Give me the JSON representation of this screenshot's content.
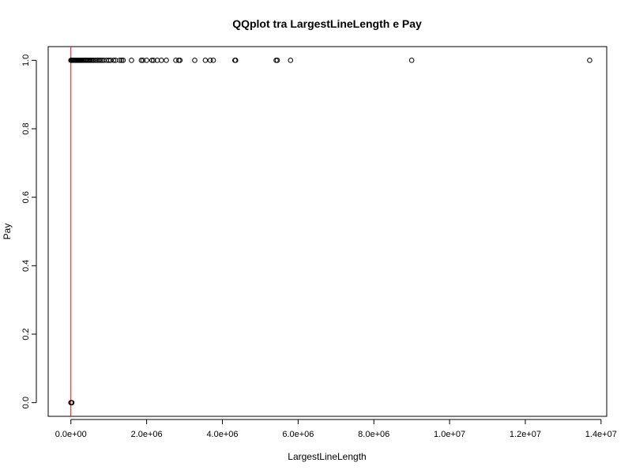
{
  "chart_data": {
    "type": "scatter",
    "title": "QQplot tra LargestLineLength e Pay",
    "xlabel": "LargestLineLength",
    "ylabel": "Pay",
    "xlim": [
      -600000,
      14150000
    ],
    "ylim": [
      -0.04,
      1.04
    ],
    "x_ticks": [
      {
        "value": 0,
        "label": "0.0e+00"
      },
      {
        "value": 2000000,
        "label": "2.0e+06"
      },
      {
        "value": 4000000,
        "label": "4.0e+06"
      },
      {
        "value": 6000000,
        "label": "6.0e+06"
      },
      {
        "value": 8000000,
        "label": "8.0e+06"
      },
      {
        "value": 10000000,
        "label": "1.0e+07"
      },
      {
        "value": 12000000,
        "label": "1.2e+07"
      },
      {
        "value": 14000000,
        "label": "1.4e+07"
      }
    ],
    "y_ticks": [
      {
        "value": 0.0,
        "label": "0.0"
      },
      {
        "value": 0.2,
        "label": "0.2"
      },
      {
        "value": 0.4,
        "label": "0.4"
      },
      {
        "value": 0.6,
        "label": "0.6"
      },
      {
        "value": 0.8,
        "label": "0.8"
      },
      {
        "value": 1.0,
        "label": "1.0"
      }
    ],
    "grid": false,
    "legend": "none",
    "reference_line": {
      "orientation": "vertical",
      "x": 0,
      "color": "#ff0000"
    },
    "point_color": "#000000",
    "series": [
      {
        "points": [
          {
            "x": 0,
            "y": 0
          },
          {
            "x": 5000,
            "y": 0
          },
          {
            "x": 10000,
            "y": 0
          },
          {
            "x": 15000,
            "y": 0
          },
          {
            "x": 20000,
            "y": 0
          },
          {
            "x": 25000,
            "y": 0
          },
          {
            "x": 0,
            "y": 1
          },
          {
            "x": 20000,
            "y": 1
          },
          {
            "x": 40000,
            "y": 1
          },
          {
            "x": 60000,
            "y": 1
          },
          {
            "x": 80000,
            "y": 1
          },
          {
            "x": 100000,
            "y": 1
          },
          {
            "x": 120000,
            "y": 1
          },
          {
            "x": 140000,
            "y": 1
          },
          {
            "x": 160000,
            "y": 1
          },
          {
            "x": 180000,
            "y": 1
          },
          {
            "x": 200000,
            "y": 1
          },
          {
            "x": 220000,
            "y": 1
          },
          {
            "x": 240000,
            "y": 1
          },
          {
            "x": 260000,
            "y": 1
          },
          {
            "x": 280000,
            "y": 1
          },
          {
            "x": 300000,
            "y": 1
          },
          {
            "x": 330000,
            "y": 1
          },
          {
            "x": 360000,
            "y": 1
          },
          {
            "x": 390000,
            "y": 1
          },
          {
            "x": 420000,
            "y": 1
          },
          {
            "x": 450000,
            "y": 1
          },
          {
            "x": 480000,
            "y": 1
          },
          {
            "x": 510000,
            "y": 1
          },
          {
            "x": 540000,
            "y": 1
          },
          {
            "x": 570000,
            "y": 1
          },
          {
            "x": 600000,
            "y": 1
          },
          {
            "x": 650000,
            "y": 1
          },
          {
            "x": 700000,
            "y": 1
          },
          {
            "x": 740000,
            "y": 1
          },
          {
            "x": 780000,
            "y": 1
          },
          {
            "x": 820000,
            "y": 1
          },
          {
            "x": 870000,
            "y": 1
          },
          {
            "x": 940000,
            "y": 1
          },
          {
            "x": 1000000,
            "y": 1
          },
          {
            "x": 1050000,
            "y": 1
          },
          {
            "x": 1130000,
            "y": 1
          },
          {
            "x": 1180000,
            "y": 1
          },
          {
            "x": 1290000,
            "y": 1
          },
          {
            "x": 1340000,
            "y": 1
          },
          {
            "x": 1380000,
            "y": 1
          },
          {
            "x": 1600000,
            "y": 1
          },
          {
            "x": 1860000,
            "y": 1
          },
          {
            "x": 1900000,
            "y": 1
          },
          {
            "x": 2000000,
            "y": 1
          },
          {
            "x": 2140000,
            "y": 1
          },
          {
            "x": 2180000,
            "y": 1
          },
          {
            "x": 2280000,
            "y": 1
          },
          {
            "x": 2390000,
            "y": 1
          },
          {
            "x": 2520000,
            "y": 1
          },
          {
            "x": 2770000,
            "y": 1
          },
          {
            "x": 2850000,
            "y": 1
          },
          {
            "x": 2880000,
            "y": 1
          },
          {
            "x": 3270000,
            "y": 1
          },
          {
            "x": 3550000,
            "y": 1
          },
          {
            "x": 3680000,
            "y": 1
          },
          {
            "x": 3760000,
            "y": 1
          },
          {
            "x": 4330000,
            "y": 1
          },
          {
            "x": 4350000,
            "y": 1
          },
          {
            "x": 5420000,
            "y": 1
          },
          {
            "x": 5450000,
            "y": 1
          },
          {
            "x": 5800000,
            "y": 1
          },
          {
            "x": 9000000,
            "y": 1
          },
          {
            "x": 13700000,
            "y": 1
          }
        ]
      }
    ]
  }
}
